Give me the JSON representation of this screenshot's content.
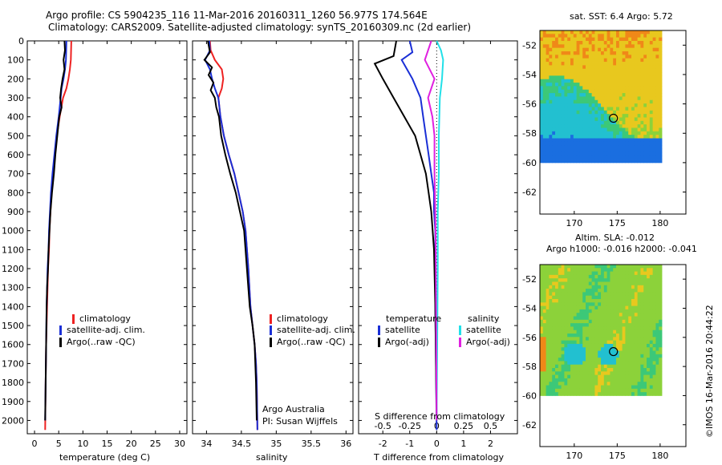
{
  "header": {
    "line1": "Argo profile: CS 5904235_116 11-Mar-2016 20160311_1260 56.977S 174.564E",
    "line2": "Climatology: CARS2009. Satellite-adjusted climatology: synTS_20160309.nc (2d earlier)"
  },
  "footer_stamp": "©IMOS 16-Mar-2016 20:44:22",
  "colors": {
    "clim": "#ee2222",
    "sat": "#1a2fd6",
    "argo": "#000000",
    "sal_sat": "#22e0e8",
    "sal_argo": "#e020e0"
  },
  "chart_data": [
    {
      "type": "line",
      "id": "temperature",
      "xlabel": "temperature (deg C)",
      "ylabel": "",
      "xlim": [
        -1.5,
        31.5
      ],
      "ylim": [
        2070,
        0
      ],
      "xticks": [
        0,
        5,
        10,
        15,
        20,
        25,
        30
      ],
      "xtick_labels": [
        "0",
        "5",
        "10",
        "15",
        "20",
        "25",
        "30"
      ],
      "yticks": [
        0,
        100,
        200,
        300,
        400,
        500,
        600,
        700,
        800,
        900,
        1000,
        1100,
        1200,
        1300,
        1400,
        1500,
        1600,
        1700,
        1800,
        1900,
        2000
      ],
      "ytick_labels": [
        "0",
        "100",
        "200",
        "300",
        "400",
        "500",
        "600",
        "700",
        "800",
        "900",
        "1000",
        "1100",
        "1200",
        "1300",
        "1400",
        "1500",
        "1600",
        "1700",
        "1800",
        "1900",
        "2000"
      ],
      "legend": [
        "climatology",
        "satellite-adj. clim.",
        "Argo(..raw -QC)"
      ],
      "series": [
        {
          "name": "climatology",
          "color_key": "clim",
          "x": [
            7.6,
            7.5,
            7.3,
            7.0,
            6.6,
            5.9,
            5.2,
            4.6,
            4.2,
            3.8,
            3.5,
            3.3,
            3.1,
            3.0,
            2.8,
            2.7,
            2.6,
            2.5,
            2.4,
            2.3,
            2.2
          ],
          "y": [
            0,
            100,
            150,
            200,
            250,
            300,
            400,
            500,
            600,
            700,
            800,
            900,
            1000,
            1100,
            1200,
            1300,
            1400,
            1500,
            1600,
            1800,
            2050
          ]
        },
        {
          "name": "satellite-adj. clim.",
          "color_key": "sat",
          "x": [
            6.6,
            6.5,
            6.3,
            6.0,
            5.6,
            5.4,
            5.0,
            4.5,
            4.1,
            3.7,
            3.4,
            3.2,
            3.0,
            2.9,
            2.7,
            2.6,
            2.5,
            2.4,
            2.3,
            2.2
          ],
          "y": [
            0,
            100,
            150,
            200,
            250,
            300,
            400,
            500,
            600,
            700,
            800,
            900,
            1000,
            1100,
            1200,
            1300,
            1400,
            1600,
            1800,
            2000
          ]
        },
        {
          "name": "Argo(..raw -QC)",
          "color_key": "argo",
          "x": [
            6.2,
            6.3,
            6.0,
            6.2,
            5.8,
            5.5,
            5.3,
            5.6,
            5.1,
            4.7,
            4.3,
            4.0,
            3.6,
            3.3,
            3.1,
            2.9,
            2.8,
            2.6,
            2.5,
            2.4,
            2.3,
            2.2
          ],
          "y": [
            0,
            50,
            100,
            150,
            200,
            250,
            300,
            350,
            400,
            500,
            600,
            700,
            800,
            900,
            1000,
            1100,
            1200,
            1300,
            1400,
            1600,
            1800,
            2000
          ]
        }
      ]
    },
    {
      "type": "line",
      "id": "salinity",
      "xlabel": "salinity",
      "xlim": [
        33.8,
        36.1
      ],
      "ylim": [
        2070,
        0
      ],
      "xticks": [
        34,
        34.5,
        35,
        35.5,
        36
      ],
      "xtick_labels": [
        "34",
        "34.5",
        "35",
        "35.5",
        "36"
      ],
      "legend": [
        "climatology",
        "satellite-adj. clim.",
        "Argo(..raw -QC)"
      ],
      "annotation": [
        "Argo Australia",
        "PI: Susan Wijffels"
      ],
      "series": [
        {
          "name": "climatology",
          "color_key": "clim",
          "x": [
            34.05,
            34.06,
            34.12,
            34.22,
            34.24,
            34.22,
            34.17,
            34.2,
            34.25,
            34.32,
            34.4,
            34.46,
            34.52,
            34.56,
            34.6,
            34.63,
            34.66,
            34.69,
            34.71,
            34.72,
            34.73
          ],
          "y": [
            0,
            50,
            100,
            150,
            200,
            250,
            300,
            400,
            500,
            600,
            700,
            800,
            900,
            1000,
            1200,
            1400,
            1500,
            1600,
            1700,
            1800,
            2050
          ]
        },
        {
          "name": "satellite-adj. clim.",
          "color_key": "sat",
          "x": [
            34.04,
            34.05,
            33.98,
            34.05,
            34.08,
            34.12,
            34.17,
            34.2,
            34.25,
            34.32,
            34.4,
            34.46,
            34.52,
            34.56,
            34.6,
            34.63,
            34.66,
            34.69,
            34.71,
            34.72,
            34.73
          ],
          "y": [
            0,
            50,
            100,
            150,
            200,
            250,
            300,
            400,
            500,
            600,
            700,
            800,
            900,
            1000,
            1200,
            1400,
            1500,
            1600,
            1700,
            1800,
            2050
          ]
        },
        {
          "name": "Argo(..raw -QC)",
          "color_key": "argo",
          "x": [
            34.02,
            34.05,
            33.97,
            34.08,
            34.03,
            34.1,
            34.06,
            34.12,
            34.14,
            34.18,
            34.21,
            34.27,
            34.34,
            34.42,
            34.48,
            34.54,
            34.58,
            34.62,
            34.66,
            34.69,
            34.71,
            34.72
          ],
          "y": [
            0,
            60,
            100,
            140,
            180,
            220,
            260,
            300,
            350,
            400,
            500,
            600,
            700,
            800,
            900,
            1000,
            1200,
            1400,
            1500,
            1600,
            1800,
            2000
          ]
        }
      ]
    },
    {
      "type": "line",
      "id": "difference",
      "xlabel": "T difference from climatology",
      "xlabel_top": "S difference from climatology",
      "xlim": [
        -2.9,
        3.0
      ],
      "ylim": [
        2070,
        0
      ],
      "xticks": [
        -2,
        -1,
        0,
        1,
        2
      ],
      "xtick_labels": [
        "-2",
        "-1",
        "0",
        "1",
        "2"
      ],
      "xticks_top": [
        -0.5,
        -0.25,
        0,
        0.25,
        0.5
      ],
      "xtick_top_labels": [
        "-0.5",
        "-0.25",
        "0",
        "0.25",
        "0.5"
      ],
      "s_scale": 4,
      "legend_temperature_title": "temperature",
      "legend_salinity_title": "salinity",
      "legend_temperature": [
        "satellite",
        "Argo(-adj)"
      ],
      "legend_salinity": [
        "satellite",
        "Argo(-adj)"
      ],
      "series": [
        {
          "name": "T satellite",
          "color_key": "sat",
          "x": [
            -1.0,
            -0.9,
            -1.3,
            -1.1,
            -0.9,
            -0.6,
            -0.5,
            -0.4,
            -0.3,
            -0.2,
            -0.1,
            -0.1,
            -0.05,
            -0.05,
            0
          ],
          "y": [
            0,
            60,
            100,
            150,
            200,
            300,
            400,
            500,
            600,
            700,
            800,
            900,
            1000,
            1400,
            2050
          ]
        },
        {
          "name": "T Argo(-adj)",
          "color_key": "argo",
          "x": [
            -1.5,
            -1.6,
            -2.3,
            -2.0,
            -1.6,
            -1.2,
            -0.8,
            -0.6,
            -0.4,
            -0.3,
            -0.2,
            -0.1,
            -0.05,
            0
          ],
          "y": [
            0,
            80,
            120,
            200,
            300,
            400,
            500,
            600,
            700,
            800,
            900,
            1100,
            1400,
            2000
          ]
        },
        {
          "name": "S satellite",
          "color_key": "sal_sat",
          "x": [
            0.0,
            0.04,
            0.06,
            0.05,
            0.03,
            0.02,
            0.02,
            0.01,
            0.01,
            0
          ],
          "y": [
            0,
            50,
            100,
            200,
            300,
            500,
            700,
            900,
            1200,
            2000
          ]
        },
        {
          "name": "S Argo(-adj)",
          "color_key": "sal_argo",
          "x": [
            -0.05,
            -0.11,
            -0.02,
            -0.08,
            -0.04,
            -0.02,
            -0.02,
            -0.01,
            0
          ],
          "y": [
            0,
            100,
            200,
            300,
            400,
            500,
            700,
            1000,
            2000
          ]
        }
      ]
    },
    {
      "type": "heatmap",
      "id": "sst_map",
      "title": "sat. SST: 6.4  Argo: 5.72",
      "xlim": [
        166,
        183
      ],
      "ylim": [
        -63.5,
        -51
      ],
      "xticks": [
        170,
        175,
        180
      ],
      "yticks": [
        -52,
        -54,
        -56,
        -58,
        -60,
        -62
      ],
      "ytick_labels": [
        "-52",
        "-54",
        "-56",
        "-58",
        "-60",
        "-62"
      ],
      "marker": {
        "lon": 174.564,
        "lat": -56.977
      },
      "data_extent": {
        "lon": [
          166,
          180.2
        ],
        "lat": [
          -60,
          -51
        ]
      }
    },
    {
      "type": "heatmap",
      "id": "sla_map",
      "title": "Altim. SLA: -0.012",
      "subtitle": "Argo h1000: -0.016  h2000: -0.041",
      "xlim": [
        166,
        183
      ],
      "ylim": [
        -63.5,
        -51
      ],
      "xticks": [
        170,
        175,
        180
      ],
      "yticks": [
        -52,
        -54,
        -56,
        -58,
        -60,
        -62
      ],
      "ytick_labels": [
        "-52",
        "-54",
        "-56",
        "-58",
        "-60",
        "-62"
      ],
      "marker": {
        "lon": 174.564,
        "lat": -56.977
      },
      "data_extent": {
        "lon": [
          166,
          180.2
        ],
        "lat": [
          -60,
          -51
        ]
      }
    }
  ]
}
